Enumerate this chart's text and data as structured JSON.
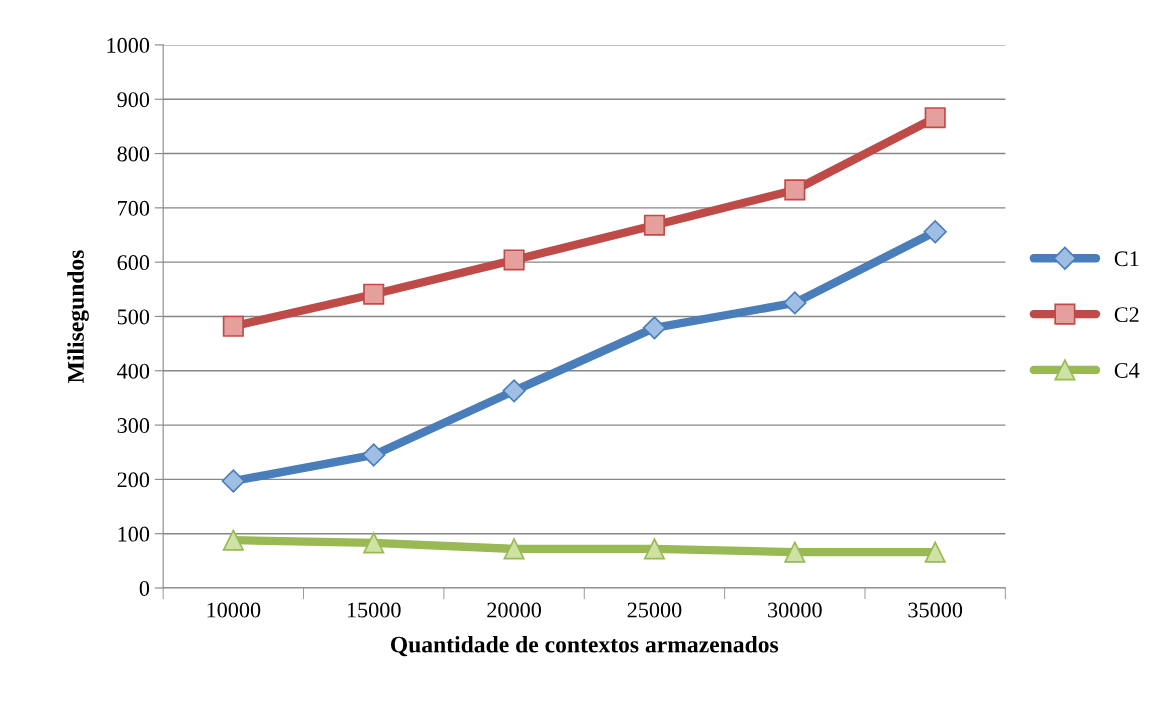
{
  "chart_data": {
    "type": "line",
    "xlabel": "Quantidade de contextos armazenados",
    "ylabel": "Milisegundos",
    "categories": [
      "10000",
      "15000",
      "20000",
      "25000",
      "30000",
      "35000"
    ],
    "series": [
      {
        "name": "C1",
        "color": "#4a7ebb",
        "marker": "diamond",
        "values": [
          197,
          245,
          363,
          479,
          525,
          656
        ]
      },
      {
        "name": "C2",
        "color": "#be4b48",
        "marker": "square",
        "values": [
          482,
          541,
          604,
          668,
          733,
          866
        ]
      },
      {
        "name": "C4",
        "color": "#98b954",
        "marker": "triangle",
        "values": [
          88,
          83,
          72,
          72,
          66,
          66
        ]
      }
    ],
    "ylim": [
      0,
      1000
    ],
    "yticks": [
      0,
      100,
      200,
      300,
      400,
      500,
      600,
      700,
      800,
      900,
      1000
    ],
    "grid": "y",
    "legend": "right",
    "line_style": "solid"
  }
}
